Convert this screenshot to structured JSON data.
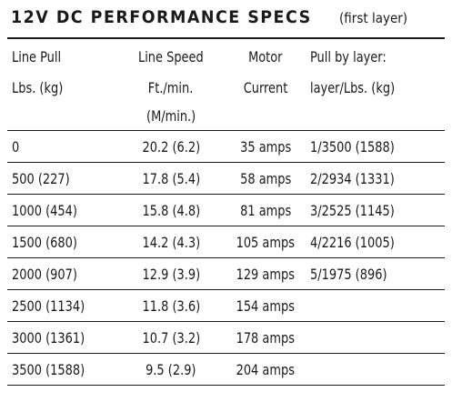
{
  "title": {
    "main": "12V DC PERFORMANCE SPECS",
    "sub": "(first layer)"
  },
  "headers": {
    "line_pull": [
      "Line Pull",
      "Lbs. (kg)",
      ""
    ],
    "line_speed": [
      "Line Speed",
      "Ft./min.",
      "(M/min.)"
    ],
    "motor": [
      "Motor",
      "Current",
      ""
    ],
    "pull_by_layer": [
      "Pull by layer:",
      "layer/Lbs. (kg)",
      ""
    ]
  },
  "rows": [
    {
      "line_pull": "0",
      "line_speed": "20.2 (6.2)",
      "motor": "35 amps",
      "pull_by_layer": "1/3500 (1588)"
    },
    {
      "line_pull": "500 (227)",
      "line_speed": "17.8 (5.4)",
      "motor": "58 amps",
      "pull_by_layer": "2/2934 (1331)"
    },
    {
      "line_pull": "1000 (454)",
      "line_speed": "15.8 (4.8)",
      "motor": "81 amps",
      "pull_by_layer": "3/2525 (1145)"
    },
    {
      "line_pull": "1500 (680)",
      "line_speed": "14.2 (4.3)",
      "motor": "105 amps",
      "pull_by_layer": "4/2216 (1005)"
    },
    {
      "line_pull": "2000 (907)",
      "line_speed": "12.9 (3.9)",
      "motor": "129 amps",
      "pull_by_layer": "5/1975 (896)"
    },
    {
      "line_pull": "2500 (1134)",
      "line_speed": "11.8 (3.6)",
      "motor": "154 amps",
      "pull_by_layer": ""
    },
    {
      "line_pull": "3000 (1361)",
      "line_speed": "10.7 (3.2)",
      "motor": "178 amps",
      "pull_by_layer": ""
    },
    {
      "line_pull": "3500 (1588)",
      "line_speed": "9.5 (2.9)",
      "motor": "204 amps",
      "pull_by_layer": ""
    }
  ]
}
